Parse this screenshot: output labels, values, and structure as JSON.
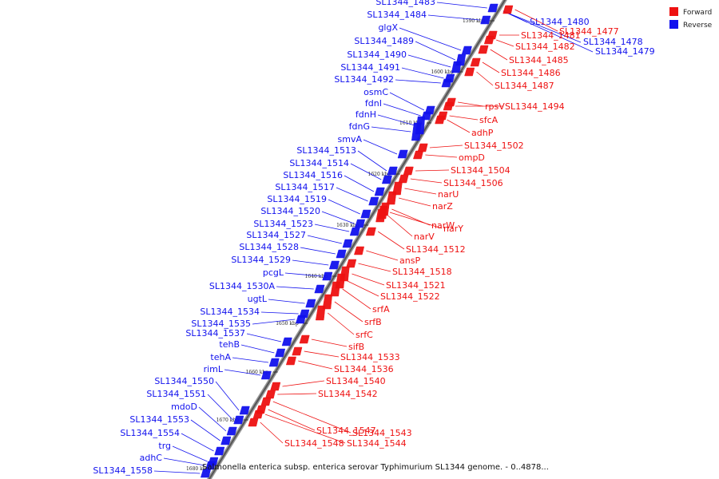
{
  "legend": {
    "forward_label": "Forward",
    "reverse_label": "Reverse",
    "forward_color": "#ee1111",
    "reverse_color": "#1111ee"
  },
  "caption": "Salmonella enterica subsp. enterica serovar Typhimurium SL1344 genome. - 0..4878...",
  "axis": {
    "ticks": [
      "1590 kbp",
      "1600 kbp",
      "1610 kbp",
      "1620 kbp",
      "1630 kbp",
      "1640 kbp",
      "1650 kbp",
      "1660 kbp",
      "1670 kbp",
      "1680 kbp"
    ]
  },
  "reverse_genes": [
    "SL1344_1483",
    "SL1344_1484",
    "glgX",
    "SL1344_1489",
    "SL1344_1490",
    "SL1344_1491",
    "SL1344_1492",
    "osmC",
    "fdnI",
    "fdnH",
    "fdnG",
    "smvA",
    "SL1344_1513",
    "SL1344_1514",
    "SL1344_1516",
    "SL1344_1517",
    "SL1344_1519",
    "SL1344_1520",
    "SL1344_1523",
    "SL1344_1527",
    "SL1344_1528",
    "SL1344_1529",
    "pcgL",
    "SL1344_1530A",
    "ugtL",
    "SL1344_1534",
    "SL1344_1535",
    "SL1344_1537",
    "tehB",
    "tehA",
    "rimL",
    "SL1344_1550",
    "SL1344_1551",
    "mdoD",
    "SL1344_1553",
    "SL1344_1554",
    "trg",
    "adhC",
    "SL1344_1558"
  ],
  "reverse_genes_right": [
    "SL1344_1480",
    "SL1344_1478",
    "SL1344_1479"
  ],
  "forward_genes": [
    "SL1344_1477",
    "SL1344_1481",
    "SL1344_1482",
    "SL1344_1485",
    "SL1344_1486",
    "SL1344_1487",
    "rpsV",
    "SL1344_1494",
    "sfcA",
    "adhP",
    "SL1344_1502",
    "ompD",
    "SL1344_1504",
    "SL1344_1506",
    "narU",
    "narZ",
    "narW",
    "narY",
    "narV",
    "SL1344_1512",
    "ansP",
    "SL1344_1518",
    "SL1344_1521",
    "SL1344_1522",
    "srfA",
    "srfB",
    "srfC",
    "sifB",
    "SL1344_1533",
    "SL1344_1536",
    "SL1344_1540",
    "SL1344_1542",
    "SL1344_1543",
    "SL1344_1547",
    "SL1344_1544",
    "SL1344_1548"
  ]
}
